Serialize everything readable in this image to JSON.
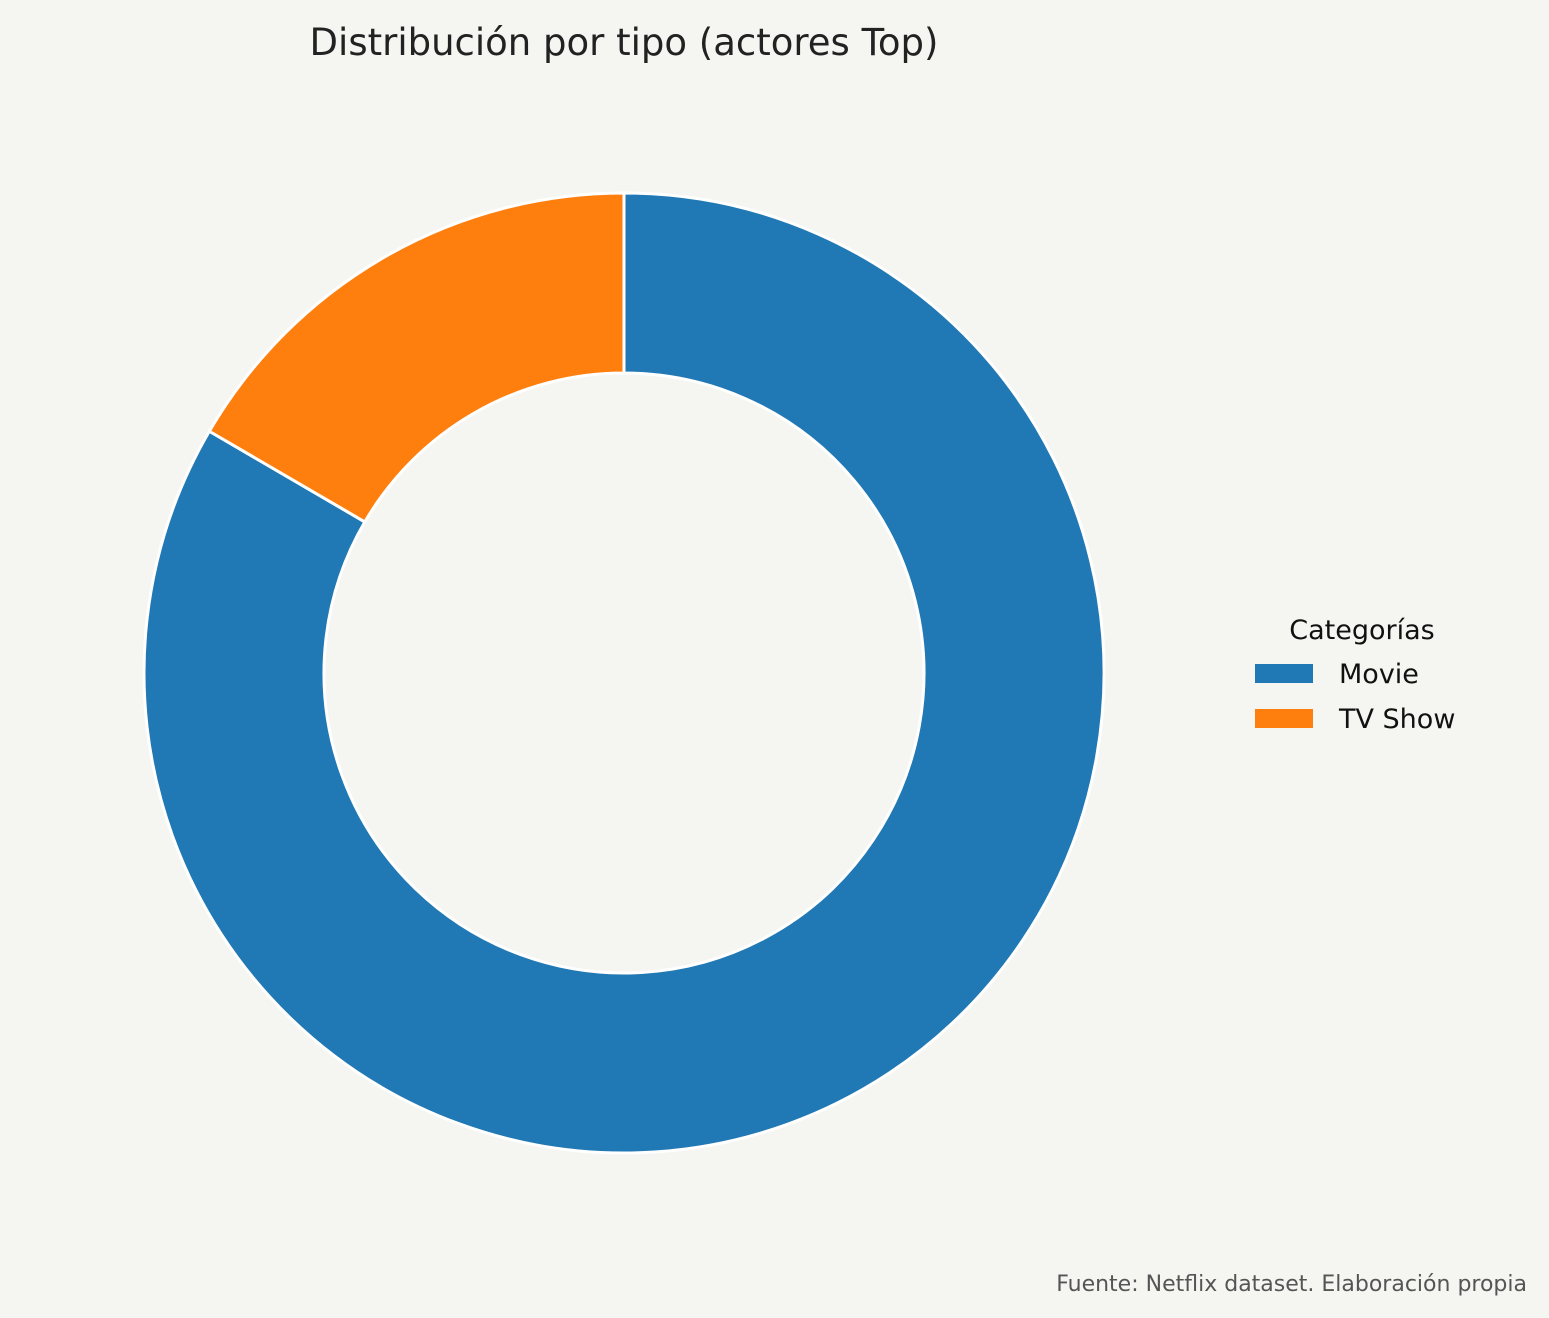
{
  "chart_data": {
    "type": "pie",
    "subtype": "donut",
    "title": "Distribución por tipo (actores Top)",
    "categories": [
      "Movie",
      "TV Show"
    ],
    "values": [
      83.4,
      16.6
    ],
    "value_unit": "percent",
    "colors": [
      "#2078b4",
      "#ff7f0e"
    ],
    "legend": {
      "title": "Categorías",
      "placement": "right"
    },
    "start_angle": "top",
    "direction": "clockwise"
  },
  "footer": {
    "source": "Fuente: Netflix dataset. Elaboración propia"
  },
  "background_color": "#f5f5f2"
}
